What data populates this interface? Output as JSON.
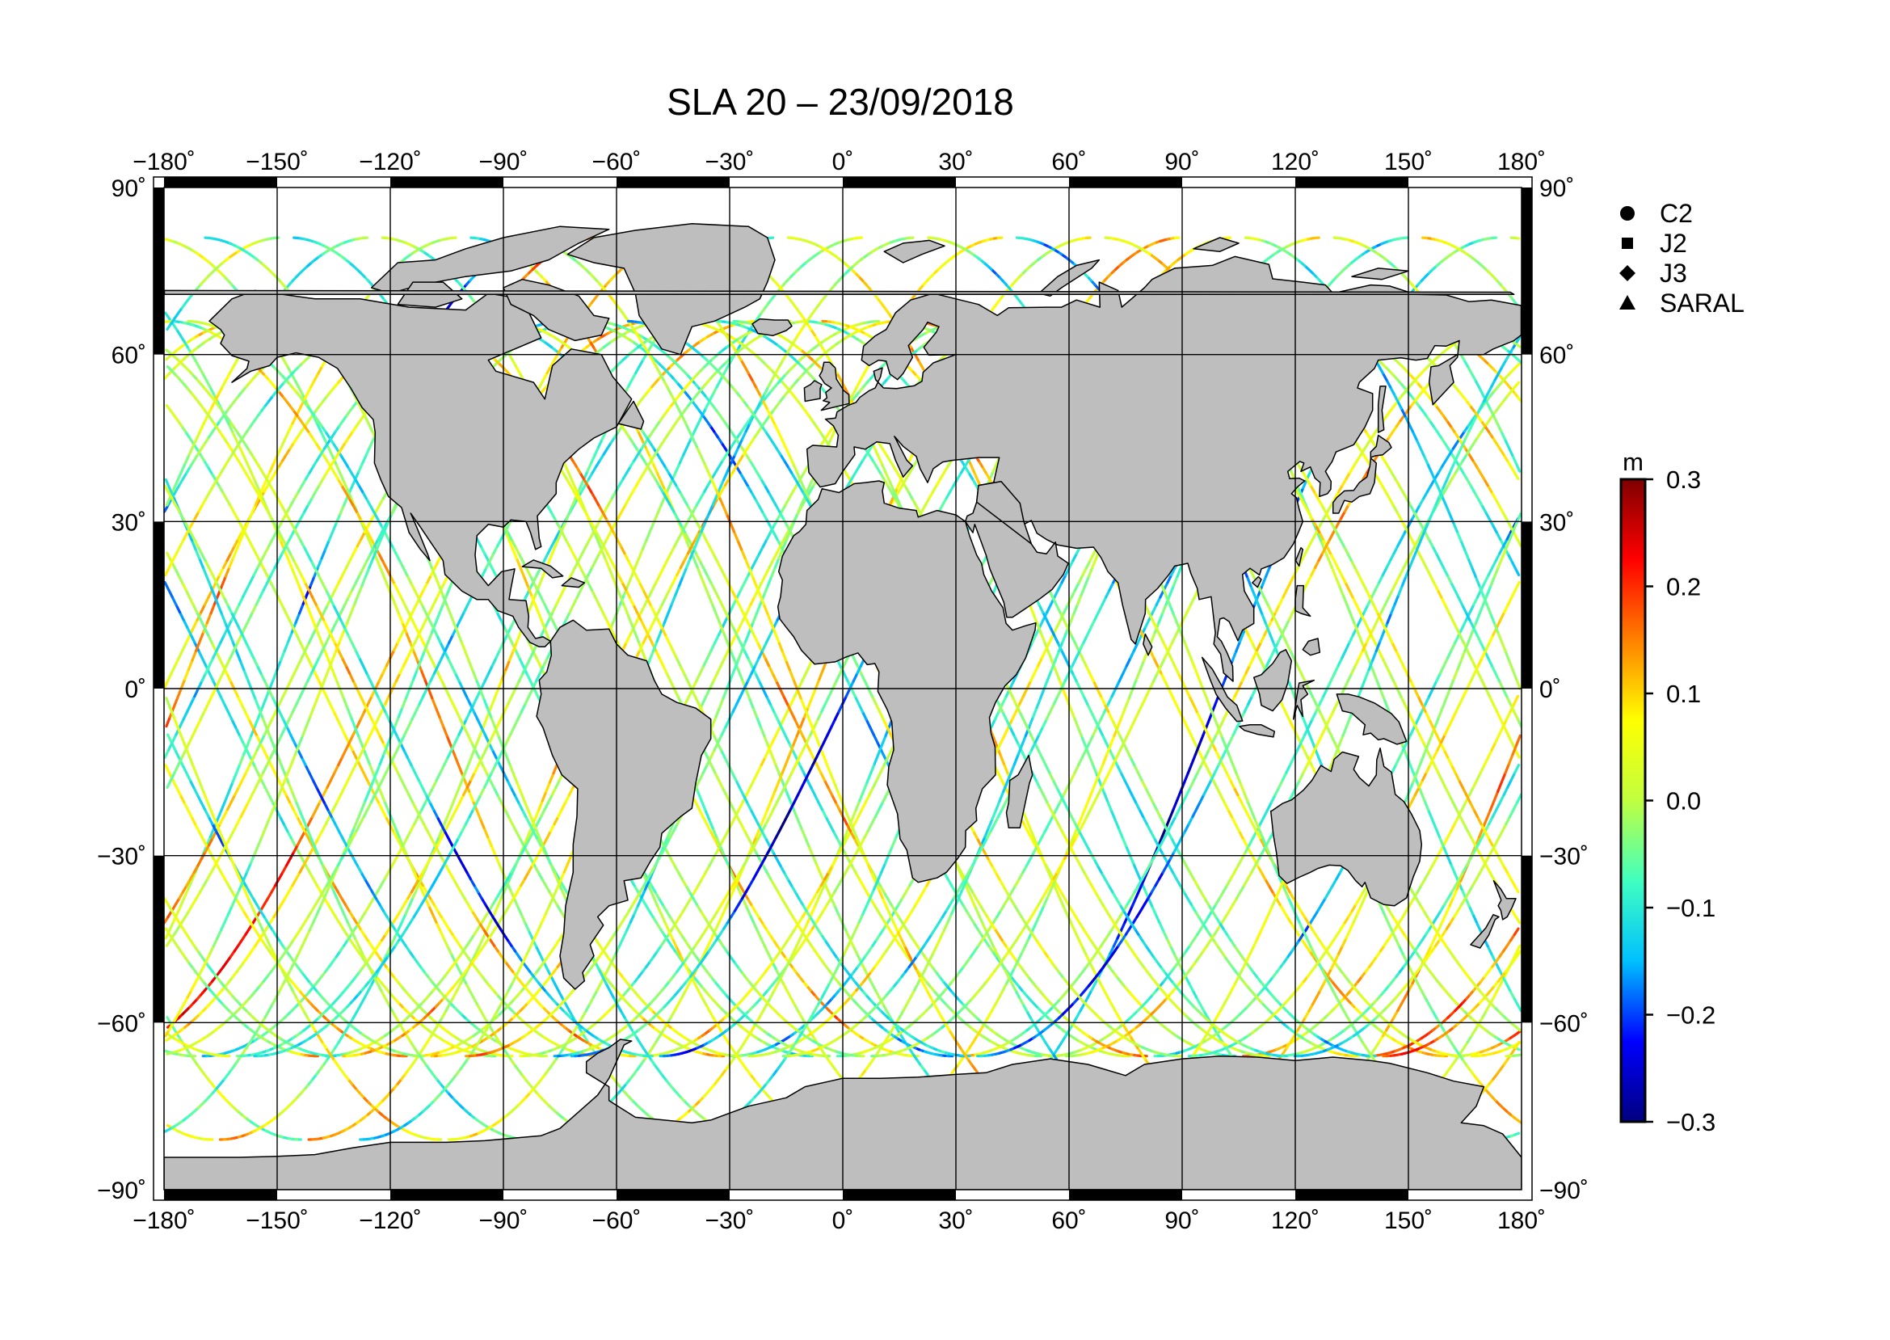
{
  "title": "SLA 20 – 23/09/2018",
  "map": {
    "x_range": [
      -180,
      180
    ],
    "y_range": [
      -90,
      90
    ],
    "lon_ticks": [
      "−180˚",
      "−150˚",
      "−120˚",
      "−90˚",
      "−60˚",
      "−30˚",
      "0˚",
      "30˚",
      "60˚",
      "90˚",
      "120˚",
      "150˚",
      "180˚"
    ],
    "lat_ticks": [
      "90˚",
      "60˚",
      "30˚",
      "0˚",
      "−30˚",
      "−60˚",
      "−90˚"
    ],
    "land_color": "#bebebe",
    "ocean_color": "#ffffff",
    "grid": true
  },
  "legend": {
    "items": [
      {
        "label": "C2",
        "marker": "circle-icon"
      },
      {
        "label": "J2",
        "marker": "square-icon"
      },
      {
        "label": "J3",
        "marker": "diamond-icon"
      },
      {
        "label": "SARAL",
        "marker": "triangle-icon"
      }
    ]
  },
  "colorbar": {
    "unit": "m",
    "range": [
      -0.3,
      0.3
    ],
    "ticks": [
      "0.3",
      "0.2",
      "0.1",
      "0.0",
      "−0.1",
      "−0.2",
      "−0.3"
    ],
    "colors": [
      "#00007f",
      "#0000ff",
      "#00c0ff",
      "#40ffc0",
      "#c0ff40",
      "#ffff00",
      "#ff8000",
      "#ff0000",
      "#7f0000"
    ]
  },
  "chart_data": {
    "type": "scatter",
    "title": "SLA 20 – 23/09/2018",
    "xlim": [
      -180,
      180
    ],
    "ylim": [
      -90,
      90
    ],
    "series": [
      {
        "name": "C2"
      },
      {
        "name": "J2"
      },
      {
        "name": "J3"
      },
      {
        "name": "SARAL"
      }
    ],
    "colorbar_unit": "m",
    "colorbar_range": [
      -0.3,
      0.3
    ]
  }
}
